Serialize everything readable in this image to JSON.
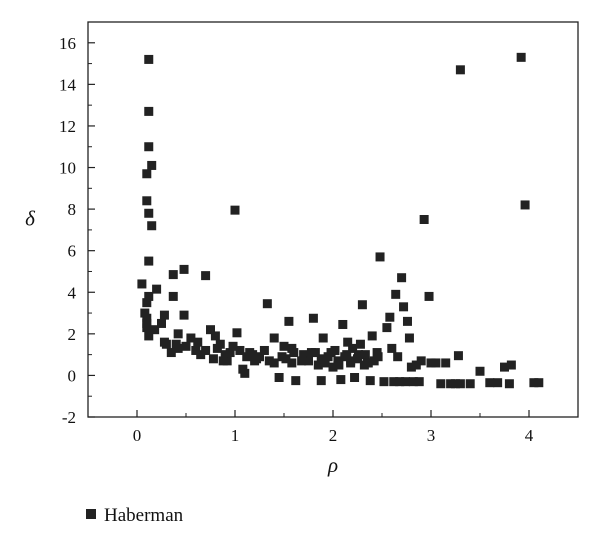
{
  "chart_data": {
    "type": "scatter",
    "title": "",
    "xlabel": "ρ",
    "ylabel": "δ",
    "xlim": [
      -0.5,
      4.5
    ],
    "ylim": [
      -2,
      17
    ],
    "xticks": [
      0,
      1,
      2,
      3,
      4
    ],
    "yticks": [
      -2,
      0,
      2,
      4,
      6,
      8,
      10,
      12,
      14,
      16
    ],
    "grid": false,
    "legend_position": "bottom-left",
    "marker": "square",
    "color": "#222222",
    "series": [
      {
        "name": "Haberman",
        "points": [
          [
            0.12,
            15.2
          ],
          [
            0.12,
            12.7
          ],
          [
            0.12,
            11.0
          ],
          [
            0.15,
            10.1
          ],
          [
            0.1,
            9.7
          ],
          [
            0.1,
            8.4
          ],
          [
            0.12,
            7.8
          ],
          [
            0.15,
            7.2
          ],
          [
            0.12,
            5.5
          ],
          [
            1.0,
            7.95
          ],
          [
            0.05,
            4.4
          ],
          [
            0.2,
            4.15
          ],
          [
            0.12,
            3.8
          ],
          [
            0.1,
            3.5
          ],
          [
            0.08,
            3.0
          ],
          [
            0.1,
            2.75
          ],
          [
            0.1,
            2.5
          ],
          [
            0.1,
            2.3
          ],
          [
            0.12,
            1.9
          ],
          [
            0.18,
            2.2
          ],
          [
            0.28,
            2.9
          ],
          [
            0.25,
            2.5
          ],
          [
            0.3,
            1.5
          ],
          [
            0.35,
            1.1
          ],
          [
            0.4,
            1.5
          ],
          [
            0.42,
            2.0
          ],
          [
            0.5,
            1.4
          ],
          [
            0.37,
            3.8
          ],
          [
            0.37,
            4.85
          ],
          [
            0.48,
            5.1
          ],
          [
            0.48,
            2.9
          ],
          [
            0.62,
            1.6
          ],
          [
            0.7,
            4.8
          ],
          [
            0.7,
            1.2
          ],
          [
            0.75,
            2.2
          ],
          [
            0.8,
            1.9
          ],
          [
            0.82,
            1.3
          ],
          [
            0.78,
            0.8
          ],
          [
            0.85,
            1.5
          ],
          [
            0.9,
            1.0
          ],
          [
            0.92,
            0.7
          ],
          [
            0.98,
            1.4
          ],
          [
            1.02,
            2.05
          ],
          [
            1.05,
            1.2
          ],
          [
            1.08,
            0.3
          ],
          [
            1.1,
            0.1
          ],
          [
            1.12,
            0.9
          ],
          [
            1.15,
            1.1
          ],
          [
            1.2,
            0.7
          ],
          [
            1.25,
            0.9
          ],
          [
            1.3,
            1.2
          ],
          [
            1.33,
            3.45
          ],
          [
            1.4,
            1.8
          ],
          [
            1.4,
            0.6
          ],
          [
            1.45,
            -0.1
          ],
          [
            1.5,
            1.4
          ],
          [
            1.52,
            0.8
          ],
          [
            1.55,
            2.6
          ],
          [
            1.58,
            0.6
          ],
          [
            1.6,
            1.1
          ],
          [
            1.62,
            -0.25
          ],
          [
            1.7,
            1.0
          ],
          [
            1.75,
            0.7
          ],
          [
            1.8,
            2.75
          ],
          [
            1.82,
            1.1
          ],
          [
            1.85,
            0.5
          ],
          [
            1.88,
            -0.25
          ],
          [
            1.9,
            1.8
          ],
          [
            1.95,
            0.9
          ],
          [
            2.0,
            0.4
          ],
          [
            2.02,
            1.2
          ],
          [
            2.05,
            0.7
          ],
          [
            2.08,
            -0.2
          ],
          [
            2.1,
            2.45
          ],
          [
            2.12,
            0.9
          ],
          [
            2.15,
            1.6
          ],
          [
            2.18,
            0.6
          ],
          [
            2.2,
            1.3
          ],
          [
            2.22,
            -0.1
          ],
          [
            2.25,
            0.8
          ],
          [
            2.28,
            1.5
          ],
          [
            2.3,
            3.4
          ],
          [
            2.33,
            1.0
          ],
          [
            2.35,
            0.6
          ],
          [
            2.38,
            -0.25
          ],
          [
            2.4,
            1.9
          ],
          [
            2.42,
            0.7
          ],
          [
            2.45,
            1.1
          ],
          [
            2.48,
            5.7
          ],
          [
            2.52,
            -0.3
          ],
          [
            2.55,
            2.3
          ],
          [
            2.58,
            2.8
          ],
          [
            2.6,
            1.3
          ],
          [
            2.62,
            -0.3
          ],
          [
            2.64,
            3.9
          ],
          [
            2.66,
            0.9
          ],
          [
            2.68,
            -0.3
          ],
          [
            2.7,
            4.7
          ],
          [
            2.72,
            3.3
          ],
          [
            2.74,
            -0.3
          ],
          [
            2.76,
            2.6
          ],
          [
            2.78,
            1.8
          ],
          [
            2.8,
            0.4
          ],
          [
            2.82,
            -0.3
          ],
          [
            2.85,
            0.5
          ],
          [
            2.88,
            -0.3
          ],
          [
            2.9,
            0.7
          ],
          [
            2.93,
            7.5
          ],
          [
            2.98,
            3.8
          ],
          [
            3.0,
            0.6
          ],
          [
            3.05,
            0.6
          ],
          [
            3.1,
            -0.4
          ],
          [
            3.15,
            0.6
          ],
          [
            3.2,
            -0.4
          ],
          [
            3.25,
            -0.4
          ],
          [
            3.28,
            0.95
          ],
          [
            3.3,
            14.7
          ],
          [
            3.3,
            -0.4
          ],
          [
            3.4,
            -0.4
          ],
          [
            3.5,
            0.2
          ],
          [
            3.6,
            -0.35
          ],
          [
            3.68,
            -0.35
          ],
          [
            3.75,
            0.4
          ],
          [
            3.8,
            -0.4
          ],
          [
            3.82,
            0.5
          ],
          [
            3.92,
            15.3
          ],
          [
            3.96,
            8.2
          ],
          [
            4.05,
            -0.35
          ],
          [
            4.1,
            -0.35
          ],
          [
            0.42,
            1.3
          ],
          [
            0.55,
            1.8
          ],
          [
            0.65,
            1.0
          ],
          [
            0.88,
            0.7
          ],
          [
            1.18,
            1.0
          ],
          [
            1.35,
            0.7
          ],
          [
            1.48,
            0.9
          ],
          [
            1.68,
            0.7
          ],
          [
            1.78,
            1.1
          ],
          [
            1.92,
            0.6
          ],
          [
            1.98,
            1.1
          ],
          [
            2.06,
            0.5
          ],
          [
            2.14,
            1.0
          ],
          [
            2.26,
            1.0
          ],
          [
            2.36,
            0.6
          ],
          [
            2.46,
            0.9
          ],
          [
            0.28,
            1.6
          ],
          [
            0.6,
            1.2
          ],
          [
            0.95,
            1.1
          ],
          [
            1.22,
            0.8
          ],
          [
            1.58,
            1.3
          ],
          [
            1.88,
            0.8
          ],
          [
            2.18,
            0.7
          ],
          [
            2.32,
            0.5
          ]
        ]
      }
    ]
  }
}
